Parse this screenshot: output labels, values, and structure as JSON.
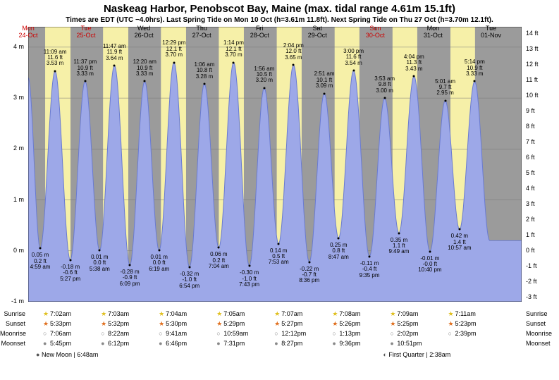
{
  "title": "Naskeag Harbor, Penobscot Bay, Maine (max. tidal range 4.61m 15.1ft)",
  "subtitle": "Times are EDT (UTC −4.0hrs). Last Spring Tide on Mon 10 Oct (h=3.61m 11.8ft). Next Spring Tide on Thu 27 Oct (h=3.70m 12.1ft).",
  "plot": {
    "bg_color": "#9b9b9b",
    "day_band_color": "#f6f0a8",
    "tide_fill_color": "#9da8e8",
    "tide_stroke_color": "#6a7bd0",
    "y_m": {
      "min": -1,
      "max": 4.4,
      "ticks": [
        -1,
        0,
        1,
        2,
        3,
        4
      ]
    },
    "y_ft": {
      "ticks": [
        -3,
        -2,
        -1,
        0,
        1,
        2,
        3,
        4,
        5,
        6,
        7,
        8,
        9,
        10,
        11,
        12,
        13,
        14
      ]
    },
    "x_days": 8.53,
    "x_start_label_idx": 0
  },
  "dates": [
    {
      "dow": "Mon",
      "day": "24-Oct",
      "color": "red"
    },
    {
      "dow": "Tue",
      "day": "25-Oct",
      "color": "red"
    },
    {
      "dow": "Wed",
      "day": "26-Oct",
      "color": "black"
    },
    {
      "dow": "Thu",
      "day": "27-Oct",
      "color": "black"
    },
    {
      "dow": "Fri",
      "day": "28-Oct",
      "color": "black"
    },
    {
      "dow": "Sat",
      "day": "29-Oct",
      "color": "black"
    },
    {
      "dow": "Sun",
      "day": "30-Oct",
      "color": "red"
    },
    {
      "dow": "Mon",
      "day": "31-Oct",
      "color": "black"
    },
    {
      "dow": "Tue",
      "day": "01-Nov",
      "color": "black"
    }
  ],
  "day_bands": [
    {
      "day": 0,
      "rise_h": 7.03,
      "set_h": 17.55
    },
    {
      "day": 1,
      "rise_h": 7.05,
      "set_h": 17.53
    },
    {
      "day": 2,
      "rise_h": 7.07,
      "set_h": 17.5
    },
    {
      "day": 3,
      "rise_h": 7.08,
      "set_h": 17.48
    },
    {
      "day": 4,
      "rise_h": 7.12,
      "set_h": 17.45
    },
    {
      "day": 5,
      "rise_h": 7.13,
      "set_h": 17.43
    },
    {
      "day": 6,
      "rise_h": 7.15,
      "set_h": 17.42
    },
    {
      "day": 7,
      "rise_h": 7.18,
      "set_h": 17.38
    }
  ],
  "tides": [
    {
      "day": 0,
      "t": 4.98,
      "h_m": 0.05,
      "lines": [
        "0.05 m",
        "0.2 ft",
        "4:59 am"
      ],
      "type": "low"
    },
    {
      "day": 0,
      "t": 11.15,
      "h_m": 3.53,
      "lines": [
        "11:09 am",
        "11.6 ft",
        "3.53 m"
      ],
      "type": "high"
    },
    {
      "day": 0,
      "t": 17.45,
      "h_m": -0.18,
      "lines": [
        "-0.18 m",
        "-0.6 ft",
        "5:27 pm"
      ],
      "type": "low"
    },
    {
      "day": 0,
      "t": 23.62,
      "h_m": 3.33,
      "lines": [
        "11:37 pm",
        "10.9 ft",
        "3.33 m"
      ],
      "type": "high"
    },
    {
      "day": 1,
      "t": 5.63,
      "h_m": 0.01,
      "lines": [
        "0.01 m",
        "0.0 ft",
        "5:38 am"
      ],
      "type": "low"
    },
    {
      "day": 1,
      "t": 11.78,
      "h_m": 3.64,
      "lines": [
        "11:47 am",
        "11.9 ft",
        "3.64 m"
      ],
      "type": "high"
    },
    {
      "day": 1,
      "t": 18.15,
      "h_m": -0.28,
      "lines": [
        "-0.28 m",
        "-0.9 ft",
        "6:09 pm"
      ],
      "type": "low"
    },
    {
      "day": 2,
      "t": 0.33,
      "h_m": 3.33,
      "lines": [
        "12:20 am",
        "10.9 ft",
        "3.33 m"
      ],
      "type": "high"
    },
    {
      "day": 2,
      "t": 6.32,
      "h_m": 0.01,
      "lines": [
        "0.01 m",
        "0.0 ft",
        "6:19 am"
      ],
      "type": "low"
    },
    {
      "day": 2,
      "t": 12.48,
      "h_m": 3.7,
      "lines": [
        "12:29 pm",
        "12.1 ft",
        "3.70 m"
      ],
      "type": "high"
    },
    {
      "day": 2,
      "t": 18.9,
      "h_m": -0.32,
      "lines": [
        "-0.32 m",
        "-1.0 ft",
        "6:54 pm"
      ],
      "type": "low"
    },
    {
      "day": 3,
      "t": 1.1,
      "h_m": 3.28,
      "lines": [
        "1:06 am",
        "10.8 ft",
        "3.28 m"
      ],
      "type": "high"
    },
    {
      "day": 3,
      "t": 7.07,
      "h_m": 0.06,
      "lines": [
        "0.06 m",
        "0.2 ft",
        "7:04 am"
      ],
      "type": "low"
    },
    {
      "day": 3,
      "t": 13.23,
      "h_m": 3.7,
      "lines": [
        "1:14 pm",
        "12.1 ft",
        "3.70 m"
      ],
      "type": "high"
    },
    {
      "day": 3,
      "t": 19.72,
      "h_m": -0.3,
      "lines": [
        "-0.30 m",
        "-1.0 ft",
        "7:43 pm"
      ],
      "type": "low"
    },
    {
      "day": 4,
      "t": 1.93,
      "h_m": 3.2,
      "lines": [
        "1:56 am",
        "10.5 ft",
        "3.20 m"
      ],
      "type": "high"
    },
    {
      "day": 4,
      "t": 7.88,
      "h_m": 0.14,
      "lines": [
        "0.14 m",
        "0.5 ft",
        "7:53 am"
      ],
      "type": "low"
    },
    {
      "day": 4,
      "t": 14.07,
      "h_m": 3.65,
      "lines": [
        "2:04 pm",
        "12.0 ft",
        "3.65 m"
      ],
      "type": "high"
    },
    {
      "day": 4,
      "t": 20.6,
      "h_m": -0.22,
      "lines": [
        "-0.22 m",
        "-0.7 ft",
        "8:36 pm"
      ],
      "type": "low"
    },
    {
      "day": 5,
      "t": 2.85,
      "h_m": 3.09,
      "lines": [
        "2:51 am",
        "10.1 ft",
        "3.09 m"
      ],
      "type": "high"
    },
    {
      "day": 5,
      "t": 8.78,
      "h_m": 0.25,
      "lines": [
        "0.25 m",
        "0.8 ft",
        "8:47 am"
      ],
      "type": "low"
    },
    {
      "day": 5,
      "t": 15.0,
      "h_m": 3.54,
      "lines": [
        "3:00 pm",
        "11.6 ft",
        "3.54 m"
      ],
      "type": "high"
    },
    {
      "day": 5,
      "t": 21.58,
      "h_m": -0.11,
      "lines": [
        "-0.11 m",
        "-0.4 ft",
        "9:35 pm"
      ],
      "type": "low"
    },
    {
      "day": 6,
      "t": 3.88,
      "h_m": 3.0,
      "lines": [
        "3:53 am",
        "9.8 ft",
        "3.00 m"
      ],
      "type": "high"
    },
    {
      "day": 6,
      "t": 9.82,
      "h_m": 0.35,
      "lines": [
        "0.35 m",
        "1.1 ft",
        "9:49 am"
      ],
      "type": "low"
    },
    {
      "day": 6,
      "t": 16.07,
      "h_m": 3.43,
      "lines": [
        "4:04 pm",
        "11.3 ft",
        "3.43 m"
      ],
      "type": "high"
    },
    {
      "day": 6,
      "t": 22.67,
      "h_m": -0.01,
      "lines": [
        "-0.01 m",
        "-0.0 ft",
        "10:40 pm"
      ],
      "type": "low"
    },
    {
      "day": 7,
      "t": 5.02,
      "h_m": 2.95,
      "lines": [
        "5:01 am",
        "9.7 ft",
        "2.95 m"
      ],
      "type": "high"
    },
    {
      "day": 7,
      "t": 10.95,
      "h_m": 0.42,
      "lines": [
        "0.42 m",
        "1.4 ft",
        "10:57 am"
      ],
      "type": "low"
    },
    {
      "day": 7,
      "t": 17.23,
      "h_m": 3.33,
      "lines": [
        "5:14 pm",
        "10.9 ft",
        "3.33 m"
      ],
      "type": "high"
    }
  ],
  "astro_rows": {
    "sunrise": {
      "label": "Sunrise",
      "items": [
        "7:02am",
        "7:03am",
        "7:04am",
        "7:05am",
        "7:07am",
        "7:08am",
        "7:09am",
        "7:11am"
      ],
      "glyph": "★",
      "color": "#e0c020"
    },
    "sunset": {
      "label": "Sunset",
      "items": [
        "5:33pm",
        "5:32pm",
        "5:30pm",
        "5:29pm",
        "5:27pm",
        "5:26pm",
        "5:25pm",
        "5:23pm"
      ],
      "glyph": "★",
      "color": "#e07020"
    },
    "moonrise": {
      "label": "Moonrise",
      "items": [
        "7:06am",
        "8:22am",
        "9:41am",
        "10:59am",
        "12:12pm",
        "1:13pm",
        "2:02pm",
        "2:39pm"
      ],
      "glyph": "○",
      "color": "#888"
    },
    "moonset": {
      "label": "Moonset",
      "items": [
        "5:45pm",
        "6:12pm",
        "6:46pm",
        "7:31pm",
        "8:27pm",
        "9:36pm",
        "10:51pm",
        ""
      ],
      "glyph": "●",
      "color": "#888"
    }
  },
  "moon_phases": [
    {
      "day": 0,
      "label": "New Moon | 6:48am",
      "glyph": "●"
    },
    {
      "day": 6,
      "label": "First Quarter | 2:38am",
      "glyph": "◐"
    }
  ]
}
